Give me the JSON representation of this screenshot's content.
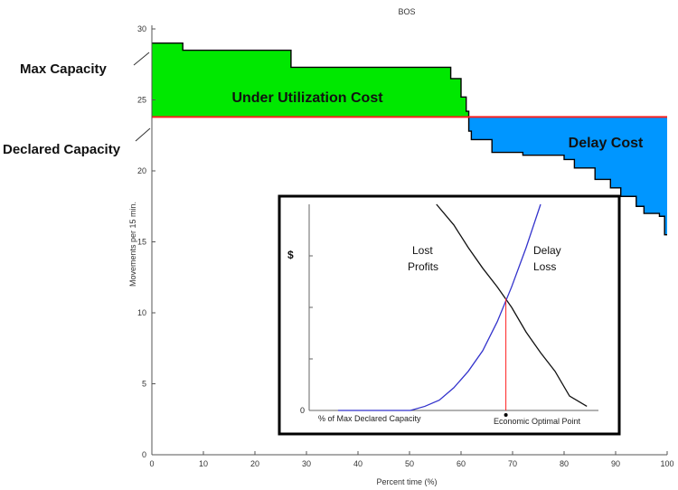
{
  "chart_data": [
    {
      "type": "area",
      "title": "BOS",
      "xlabel": "Percent time (%)",
      "ylabel": "Movements per 15 min.",
      "xlim": [
        0,
        100
      ],
      "ylim": [
        0,
        30
      ],
      "xticks": [
        0,
        10,
        20,
        30,
        40,
        50,
        60,
        70,
        80,
        90,
        100
      ],
      "yticks": [
        0,
        5,
        10,
        15,
        20,
        25,
        30
      ],
      "grid": false,
      "declared_capacity": 23.8,
      "series": [
        {
          "name": "",
          "x": [
            0,
            6,
            6,
            27,
            27,
            58,
            58,
            60,
            60,
            61,
            61,
            61.5,
            61.5,
            62,
            62,
            66,
            66,
            72,
            72,
            80,
            80,
            82,
            82,
            86,
            86,
            89,
            89,
            91,
            91,
            94,
            94,
            95.5,
            95.5,
            98.5,
            98.5,
            99.5,
            99.5,
            100
          ],
          "y": [
            29,
            29,
            28.5,
            28.5,
            27.3,
            27.3,
            26.5,
            26.5,
            25.2,
            25.2,
            24.2,
            24.2,
            22.8,
            22.8,
            22.2,
            22.2,
            21.3,
            21.3,
            21.1,
            21.1,
            20.8,
            20.8,
            20.2,
            20.2,
            19.4,
            19.4,
            18.8,
            18.8,
            18.2,
            18.2,
            17.5,
            17.5,
            17,
            17,
            16.8,
            16.8,
            15.5,
            15.5
          ]
        }
      ],
      "regions": [
        {
          "label": "Under Utilization Cost",
          "color": "#00e800"
        },
        {
          "label": "Delay Cost",
          "color": "#0096ff"
        }
      ],
      "annotations": [
        {
          "text": "Max Capacity"
        },
        {
          "text": "Declared Capacity"
        }
      ],
      "colors": {
        "capacity_line": "#ff2020",
        "step_line": "#000000"
      }
    },
    {
      "type": "line",
      "ylabel": "$",
      "xlabel": "% of Max Declared Capacity",
      "optimal_point_label": "Economic Optimal Point",
      "optimal_point_x": 0.68,
      "series": [
        {
          "name": "Lost Profits",
          "color": "#111111",
          "x": [
            0.44,
            0.5,
            0.55,
            0.6,
            0.65,
            0.7,
            0.75,
            0.8,
            0.85,
            0.9,
            0.96
          ],
          "y": [
            1.0,
            0.9,
            0.79,
            0.69,
            0.6,
            0.5,
            0.38,
            0.28,
            0.19,
            0.07,
            0.02
          ]
        },
        {
          "name": "Delay Loss",
          "color": "#3333cc",
          "x": [
            0.1,
            0.35,
            0.4,
            0.45,
            0.5,
            0.55,
            0.6,
            0.65,
            0.7,
            0.75,
            0.8
          ],
          "y": [
            0.0,
            0.0,
            0.02,
            0.05,
            0.11,
            0.19,
            0.29,
            0.43,
            0.6,
            0.79,
            1.0
          ]
        }
      ]
    }
  ]
}
